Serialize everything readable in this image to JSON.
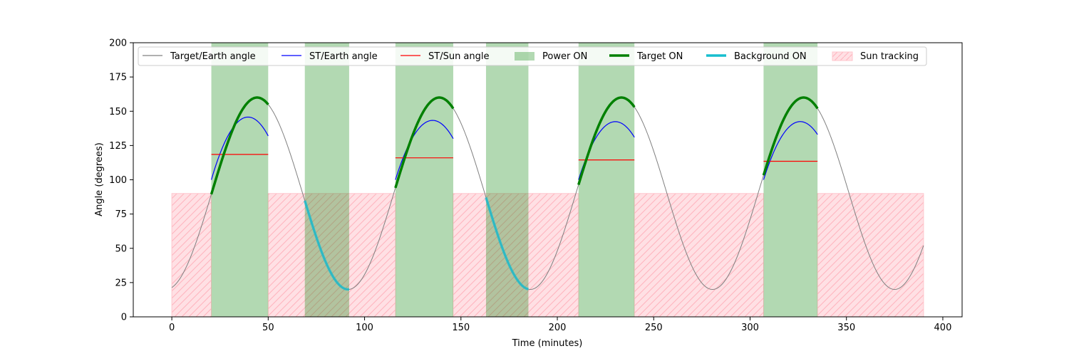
{
  "chart_data": {
    "type": "line",
    "title": "",
    "xlabel": "Time (minutes)",
    "ylabel": "Angle (degrees)",
    "xlim": [
      -20,
      410
    ],
    "ylim": [
      0,
      200
    ],
    "xticks": [
      0,
      50,
      100,
      150,
      200,
      250,
      300,
      350,
      400
    ],
    "yticks": [
      0,
      25,
      50,
      75,
      100,
      125,
      150,
      175,
      200
    ],
    "grid": false,
    "legend_position": "top",
    "legend": [
      {
        "label": "Target/Earth angle",
        "kind": "line",
        "color": "#808080"
      },
      {
        "label": "ST/Earth angle",
        "kind": "line",
        "color": "#0000ff"
      },
      {
        "label": "ST/Sun angle",
        "kind": "line",
        "color": "#ff0000"
      },
      {
        "label": "Power ON",
        "kind": "patch",
        "color": "#008000"
      },
      {
        "label": "Target ON",
        "kind": "thickline",
        "color": "#008000"
      },
      {
        "label": "Background ON",
        "kind": "thickline",
        "color": "#17becf"
      },
      {
        "label": "Sun tracking",
        "kind": "hatch",
        "color": "#ff9999"
      }
    ],
    "target_earth_wave": {
      "x_start": 0,
      "x_end": 390,
      "period": 94.5,
      "min_angle": 20,
      "max_angle": 160,
      "first_min_x": 91.5
    },
    "power_on_intervals": [
      [
        20.5,
        50
      ],
      [
        69,
        92
      ],
      [
        116,
        146
      ],
      [
        163,
        185
      ],
      [
        211,
        240
      ],
      [
        307,
        335
      ]
    ],
    "target_on_intervals": [
      [
        20.5,
        50
      ],
      [
        116,
        146
      ],
      [
        211,
        240
      ],
      [
        307,
        335
      ]
    ],
    "background_on_intervals": [
      [
        69,
        92
      ],
      [
        163,
        185
      ]
    ],
    "sun_tracking_intervals": [
      [
        0,
        20.5
      ],
      [
        50,
        116
      ],
      [
        146,
        211
      ],
      [
        240,
        307
      ],
      [
        335,
        390
      ]
    ],
    "sun_tracking_level": 90,
    "st_earth_segments": [
      {
        "x": [
          20.5,
          42,
          50
        ],
        "y": [
          100,
          145,
          132
        ]
      },
      {
        "x": [
          116,
          137,
          146
        ],
        "y": [
          100,
          143,
          130
        ]
      },
      {
        "x": [
          211,
          232,
          240
        ],
        "y": [
          100,
          142,
          131
        ]
      },
      {
        "x": [
          307,
          328,
          335
        ],
        "y": [
          100,
          142,
          133
        ]
      }
    ],
    "st_sun_segments": [
      {
        "x": [
          20.5,
          50
        ],
        "y": 118.5
      },
      {
        "x": [
          116,
          146
        ],
        "y": 116
      },
      {
        "x": [
          211,
          240
        ],
        "y": 114.5
      },
      {
        "x": [
          307,
          335
        ],
        "y": 113.5
      }
    ]
  }
}
